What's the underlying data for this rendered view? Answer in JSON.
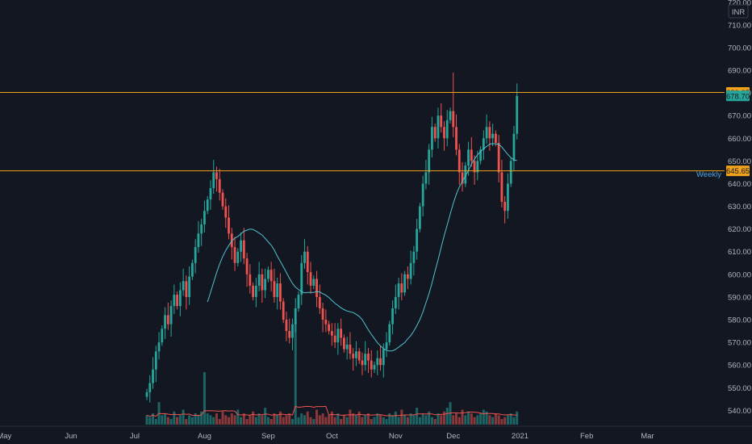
{
  "chart_data": {
    "type": "candlestick",
    "currency": "INR",
    "ylim": [
      533,
      721
    ],
    "y_ticks": [
      720,
      710,
      700,
      690,
      680,
      670,
      660,
      650,
      640,
      630,
      620,
      610,
      600,
      590,
      580,
      570,
      560,
      550,
      540
    ],
    "x_ticks": [
      {
        "label": "May",
        "i": -47
      },
      {
        "label": "Jun",
        "i": -25
      },
      {
        "label": "Jul",
        "i": -4
      },
      {
        "label": "Aug",
        "i": 19
      },
      {
        "label": "Sep",
        "i": 40
      },
      {
        "label": "Oct",
        "i": 61
      },
      {
        "label": "Nov",
        "i": 82
      },
      {
        "label": "Dec",
        "i": 101
      },
      {
        "label": "2021",
        "i": 123
      },
      {
        "label": "Feb",
        "i": 145
      },
      {
        "label": "Mar",
        "i": 165
      }
    ],
    "horizontal_lines": [
      {
        "value": 680.25,
        "label": "680.25",
        "color": "#f0a21a"
      },
      {
        "value": 645.65,
        "label": "645.65",
        "color": "#f0a21a"
      }
    ],
    "last_price": {
      "value": 678.7,
      "label": "678.70",
      "color": "#26a69a"
    },
    "ma_label": "Weekly",
    "colors": {
      "up": "#26a69a",
      "down": "#ef5350",
      "ma": "#4fc3d0",
      "vol_ma": "#ef5350",
      "background": "#131722"
    },
    "closes": [
      548,
      552,
      558,
      566,
      570,
      576,
      582,
      578,
      586,
      591,
      586,
      593,
      597,
      590,
      599,
      605,
      612,
      618,
      622,
      628,
      633,
      638,
      645,
      642,
      636,
      630,
      625,
      618,
      612,
      605,
      610,
      615,
      607,
      600,
      595,
      590,
      595,
      600,
      593,
      598,
      602,
      597,
      590,
      596,
      588,
      580,
      575,
      572,
      578,
      585,
      591,
      605,
      610,
      601,
      595,
      598,
      590,
      585,
      580,
      578,
      575,
      573,
      570,
      576,
      572,
      567,
      569,
      565,
      563,
      566,
      562,
      560,
      565,
      562,
      558,
      560,
      563,
      560,
      567,
      570,
      578,
      585,
      590,
      596,
      592,
      600,
      598,
      605,
      610,
      620,
      630,
      640,
      645,
      655,
      665,
      660,
      670,
      665,
      660,
      668,
      672,
      665,
      655,
      645,
      640,
      648,
      655,
      650,
      645,
      650,
      655,
      660,
      665,
      660,
      662,
      658,
      645,
      632,
      628,
      640,
      650,
      662,
      678.7
    ],
    "wick_highs": [
      [
        101,
        689
      ]
    ],
    "volume": [
      5,
      4,
      6,
      3,
      12,
      5,
      6,
      4,
      3,
      7,
      4,
      5,
      8,
      3,
      5,
      4,
      6,
      5,
      7,
      28,
      6,
      5,
      4,
      6,
      3,
      7,
      5,
      4,
      6,
      5,
      8,
      4,
      6,
      3,
      5,
      7,
      4,
      6,
      5,
      9,
      4,
      3,
      6,
      5,
      7,
      4,
      5,
      6,
      3,
      55,
      4,
      6,
      5,
      7,
      4,
      3,
      8,
      5,
      6,
      4,
      5,
      7,
      4,
      6,
      3,
      5,
      4,
      8,
      6,
      5,
      7,
      4,
      5,
      6,
      3,
      4,
      6,
      5,
      4,
      3,
      6,
      5,
      7,
      4,
      8,
      5,
      4,
      6,
      5,
      9,
      4,
      6,
      5,
      7,
      4,
      3,
      6,
      5,
      7,
      9,
      12,
      5,
      6,
      4,
      8,
      5,
      7,
      6,
      4,
      5,
      6,
      8,
      7,
      5,
      4,
      6,
      5,
      3,
      4,
      5,
      6,
      4,
      7
    ]
  }
}
